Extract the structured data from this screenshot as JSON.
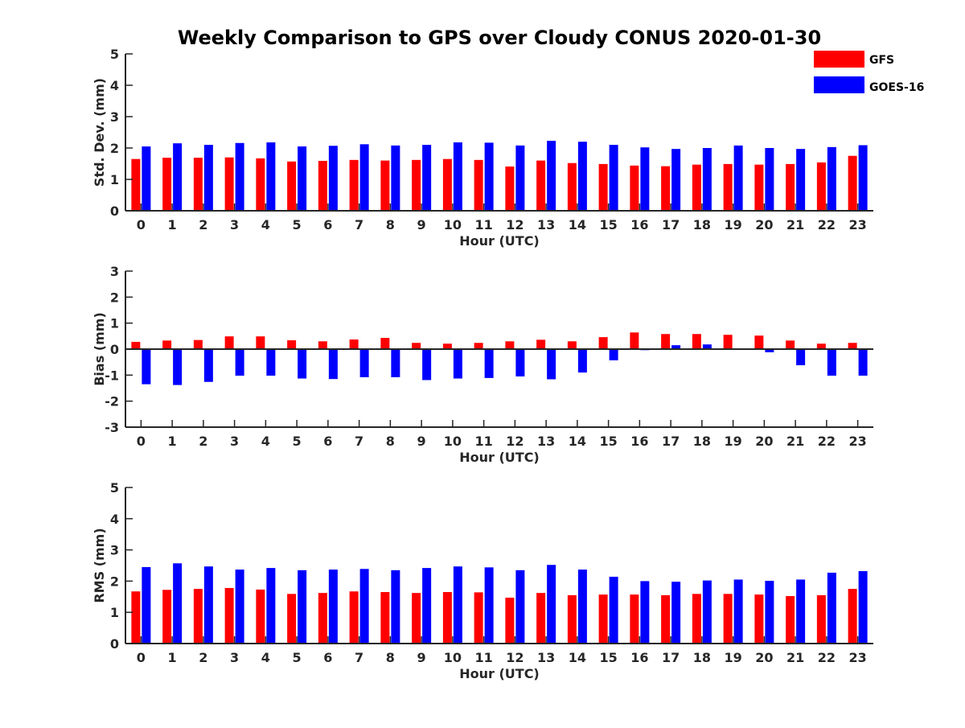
{
  "title": "Weekly Comparison to GPS over Cloudy CONUS 2020-01-30",
  "legend": {
    "placement": "top-right",
    "items": [
      {
        "label": "GFS",
        "color": "#ff0000"
      },
      {
        "label": "GOES-16",
        "color": "#0000ff"
      }
    ]
  },
  "chart_data": [
    {
      "type": "bar",
      "xlabel": "Hour (UTC)",
      "ylabel": "Std. Dev. (mm)",
      "ylim": [
        0,
        5
      ],
      "yticks": [
        0,
        1,
        2,
        3,
        4,
        5
      ],
      "categories": [
        "0",
        "1",
        "2",
        "3",
        "4",
        "5",
        "6",
        "7",
        "8",
        "9",
        "10",
        "11",
        "12",
        "13",
        "14",
        "15",
        "16",
        "17",
        "18",
        "19",
        "20",
        "21",
        "22",
        "23"
      ],
      "series": [
        {
          "name": "GFS",
          "color": "#ff0000",
          "values": [
            1.65,
            1.69,
            1.69,
            1.7,
            1.67,
            1.57,
            1.59,
            1.62,
            1.6,
            1.62,
            1.65,
            1.62,
            1.41,
            1.6,
            1.52,
            1.49,
            1.44,
            1.42,
            1.47,
            1.49,
            1.47,
            1.49,
            1.54,
            1.75
          ]
        },
        {
          "name": "GOES-16",
          "color": "#0000ff",
          "values": [
            2.05,
            2.15,
            2.1,
            2.16,
            2.18,
            2.05,
            2.07,
            2.12,
            2.08,
            2.1,
            2.18,
            2.17,
            2.08,
            2.23,
            2.2,
            2.1,
            2.02,
            1.97,
            2.0,
            2.08,
            2.0,
            1.97,
            2.03,
            2.09
          ]
        }
      ]
    },
    {
      "type": "bar",
      "xlabel": "Hour (UTC)",
      "ylabel": "Bias (mm)",
      "ylim": [
        -3,
        3
      ],
      "yticks": [
        -3,
        -2,
        -1,
        0,
        1,
        2,
        3
      ],
      "categories": [
        "0",
        "1",
        "2",
        "3",
        "4",
        "5",
        "6",
        "7",
        "8",
        "9",
        "10",
        "11",
        "12",
        "13",
        "14",
        "15",
        "16",
        "17",
        "18",
        "19",
        "20",
        "21",
        "22",
        "23"
      ],
      "series": [
        {
          "name": "GFS",
          "color": "#ff0000",
          "values": [
            0.28,
            0.33,
            0.35,
            0.49,
            0.49,
            0.34,
            0.3,
            0.37,
            0.43,
            0.24,
            0.21,
            0.24,
            0.3,
            0.36,
            0.3,
            0.46,
            0.64,
            0.58,
            0.58,
            0.55,
            0.52,
            0.33,
            0.21,
            0.24
          ]
        },
        {
          "name": "GOES-16",
          "color": "#0000ff",
          "values": [
            -1.35,
            -1.38,
            -1.26,
            -1.02,
            -1.02,
            -1.13,
            -1.15,
            -1.08,
            -1.08,
            -1.19,
            -1.13,
            -1.11,
            -1.05,
            -1.16,
            -0.9,
            -0.43,
            -0.04,
            0.15,
            0.18,
            0.03,
            -0.12,
            -0.62,
            -1.02,
            -1.02
          ]
        }
      ]
    },
    {
      "type": "bar",
      "xlabel": "Hour (UTC)",
      "ylabel": "RMS (mm)",
      "ylim": [
        0,
        5
      ],
      "yticks": [
        0,
        1,
        2,
        3,
        4,
        5
      ],
      "categories": [
        "0",
        "1",
        "2",
        "3",
        "4",
        "5",
        "6",
        "7",
        "8",
        "9",
        "10",
        "11",
        "12",
        "13",
        "14",
        "15",
        "16",
        "17",
        "18",
        "19",
        "20",
        "21",
        "22",
        "23"
      ],
      "series": [
        {
          "name": "GFS",
          "color": "#ff0000",
          "values": [
            1.67,
            1.72,
            1.75,
            1.78,
            1.73,
            1.59,
            1.62,
            1.67,
            1.65,
            1.62,
            1.65,
            1.64,
            1.47,
            1.62,
            1.55,
            1.57,
            1.57,
            1.55,
            1.59,
            1.59,
            1.57,
            1.52,
            1.55,
            1.75
          ]
        },
        {
          "name": "GOES-16",
          "color": "#0000ff",
          "values": [
            2.45,
            2.57,
            2.47,
            2.37,
            2.42,
            2.35,
            2.37,
            2.39,
            2.35,
            2.42,
            2.47,
            2.44,
            2.35,
            2.52,
            2.37,
            2.14,
            2.0,
            1.98,
            2.02,
            2.05,
            2.01,
            2.05,
            2.27,
            2.32
          ]
        }
      ]
    }
  ]
}
